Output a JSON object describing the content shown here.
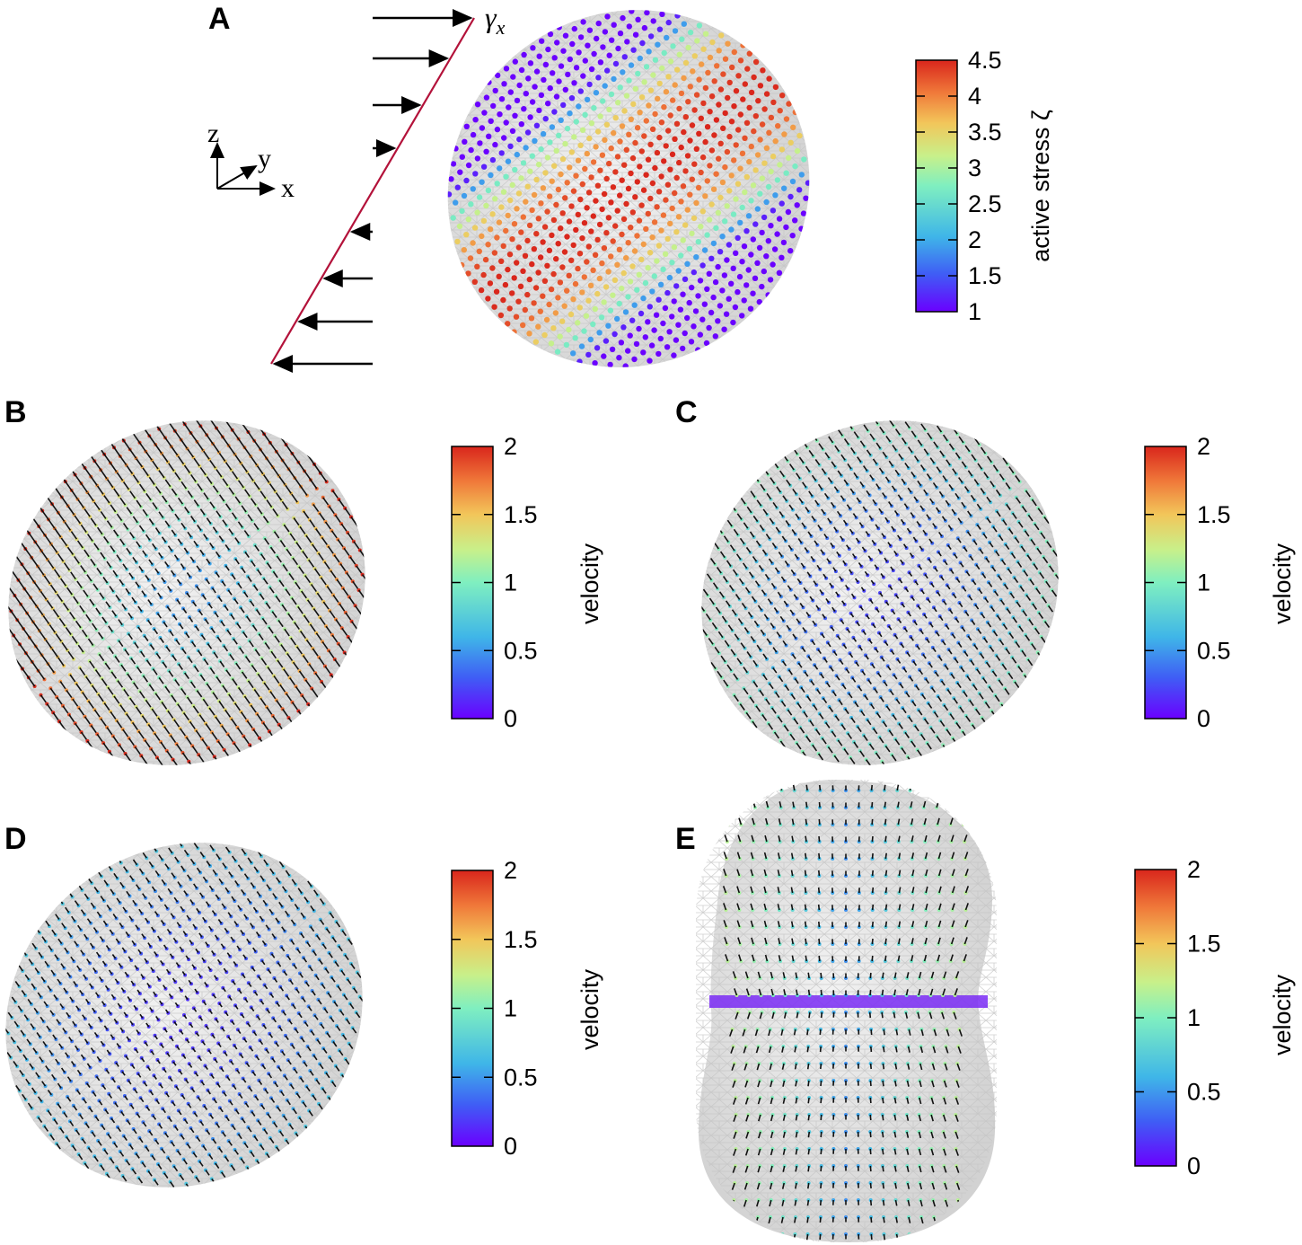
{
  "panels": {
    "A": {
      "label": "A",
      "shear_label": "γ",
      "shear_subscript": "x",
      "axes": {
        "z": "z",
        "y": "y",
        "x": "x"
      },
      "colorbar": {
        "title": "active stress ζ",
        "ticks": [
          "1",
          "1.5",
          "2",
          "2.5",
          "3",
          "3.5",
          "4",
          "4.5"
        ],
        "range": [
          1,
          4.5
        ]
      }
    },
    "B": {
      "label": "B",
      "colorbar": {
        "title": "velocity",
        "ticks": [
          "0",
          "0.5",
          "1",
          "1.5",
          "2"
        ],
        "range": [
          0,
          2
        ]
      }
    },
    "C": {
      "label": "C",
      "colorbar": {
        "title": "velocity",
        "ticks": [
          "0",
          "0.5",
          "1",
          "1.5",
          "2"
        ],
        "range": [
          0,
          2
        ]
      }
    },
    "D": {
      "label": "D",
      "colorbar": {
        "title": "velocity",
        "ticks": [
          "0",
          "0.5",
          "1",
          "1.5",
          "2"
        ],
        "range": [
          0,
          2
        ]
      }
    },
    "E": {
      "label": "E",
      "colorbar": {
        "title": "velocity",
        "ticks": [
          "0",
          "0.5",
          "1",
          "1.5",
          "2"
        ],
        "range": [
          0,
          2
        ]
      }
    }
  },
  "colormap": [
    "#6a00ff",
    "#3f5df5",
    "#3fb6e8",
    "#7fefc0",
    "#c8f08a",
    "#f2c65a",
    "#f07a3a",
    "#d9261c"
  ]
}
